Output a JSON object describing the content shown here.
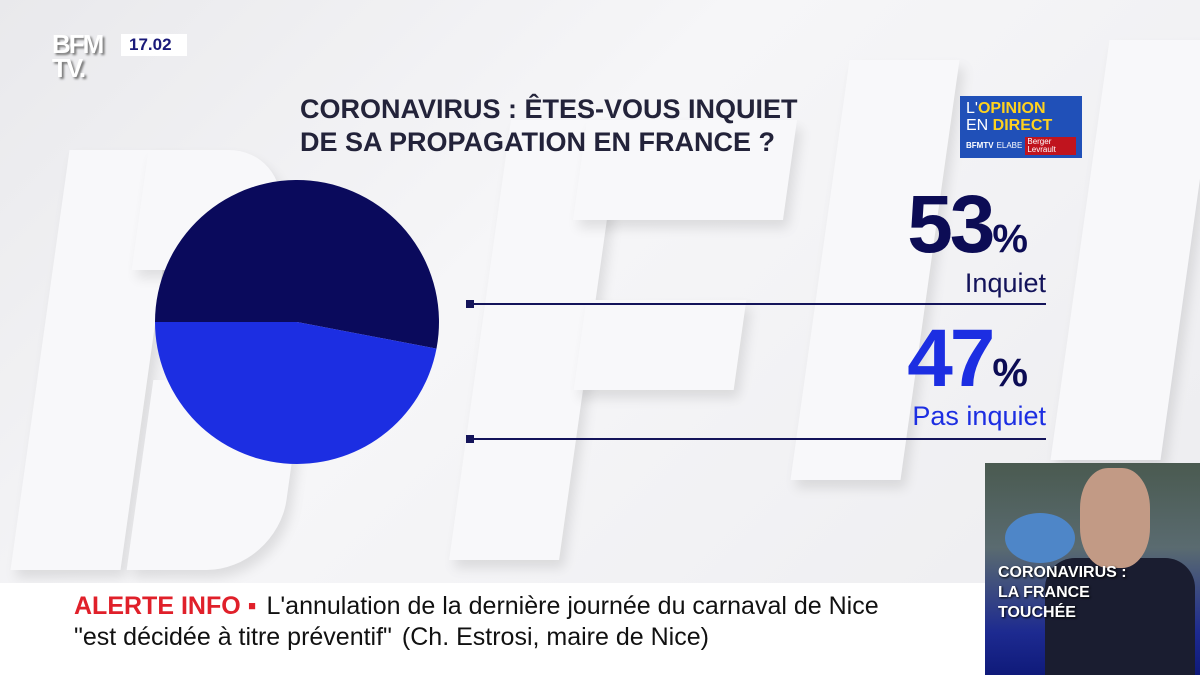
{
  "channel": {
    "logo": "BFM TV.",
    "time": "17.02"
  },
  "poll": {
    "title_line1": "CORONAVIRUS : ÊTES-VOUS INQUIET",
    "title_line2": "DE SA PROPAGATION EN FRANCE ?",
    "badge": {
      "line1a": "L'",
      "line1b": "OPINION",
      "line2a": "EN ",
      "line2b": "DIRECT",
      "bfmtv": "BFMTV",
      "elabe": "ELABE",
      "partner": "Berger Levrault"
    }
  },
  "chart_data": {
    "type": "pie",
    "title": "CORONAVIRUS : ÊTES-VOUS INQUIET DE SA PROPAGATION EN FRANCE ?",
    "slices": [
      {
        "label": "Inquiet",
        "value": 53,
        "display": "53",
        "color": "#0a0a5c"
      },
      {
        "label": "Pas inquiet",
        "value": 47,
        "display": "47",
        "color": "#1c2ee2"
      }
    ],
    "unit": "%"
  },
  "ticker": {
    "alert": "ALERTE INFO ▪",
    "line1": "L'annulation de la dernière journée du carnaval de Nice",
    "line2": "\"est décidée à titre préventif\"",
    "source": "(Ch. Estrosi, maire de Nice)"
  },
  "thumbnail": {
    "caption_line1": "CORONAVIRUS :",
    "caption_line2": "LA FRANCE",
    "caption_line3": "TOUCHÉE"
  }
}
